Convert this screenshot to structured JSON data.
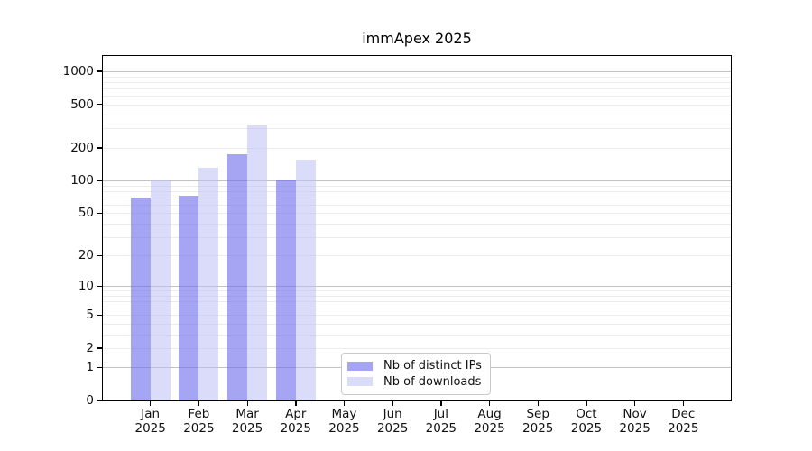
{
  "chart_data": {
    "type": "bar",
    "title": "immApex 2025",
    "categories": [
      "Jan",
      "Feb",
      "Mar",
      "Apr",
      "May",
      "Jun",
      "Jul",
      "Aug",
      "Sep",
      "Oct",
      "Nov",
      "Dec"
    ],
    "category_year": "2025",
    "series": [
      {
        "name": "Nb of distinct IPs",
        "color": "rgba(110,110,238,0.62)",
        "values": [
          70,
          73,
          175,
          100,
          null,
          null,
          null,
          null,
          null,
          null,
          null,
          null
        ]
      },
      {
        "name": "Nb of downloads",
        "color": "rgba(190,190,245,0.55)",
        "values": [
          100,
          130,
          320,
          155,
          null,
          null,
          null,
          null,
          null,
          null,
          null,
          null
        ]
      }
    ],
    "xlabel": "",
    "ylabel": "",
    "yscale": "log1p",
    "ylim": [
      0,
      1400
    ],
    "y_ticks": [
      0,
      1,
      2,
      5,
      10,
      20,
      50,
      100,
      200,
      500,
      1000
    ],
    "major_gridlines": [
      0,
      1,
      10,
      100,
      1000
    ],
    "minor_gridlines": [
      2,
      3,
      4,
      5,
      6,
      7,
      8,
      9,
      20,
      30,
      40,
      50,
      60,
      70,
      80,
      90,
      200,
      300,
      400,
      500,
      600,
      700,
      800,
      900
    ],
    "grid": true,
    "legend_position": "lower-center-left-inside",
    "colors": {
      "major_grid": "#c2c2c2",
      "minor_grid": "#ececec",
      "axis": "#000000",
      "text": "#111111",
      "background": "#ffffff"
    }
  }
}
